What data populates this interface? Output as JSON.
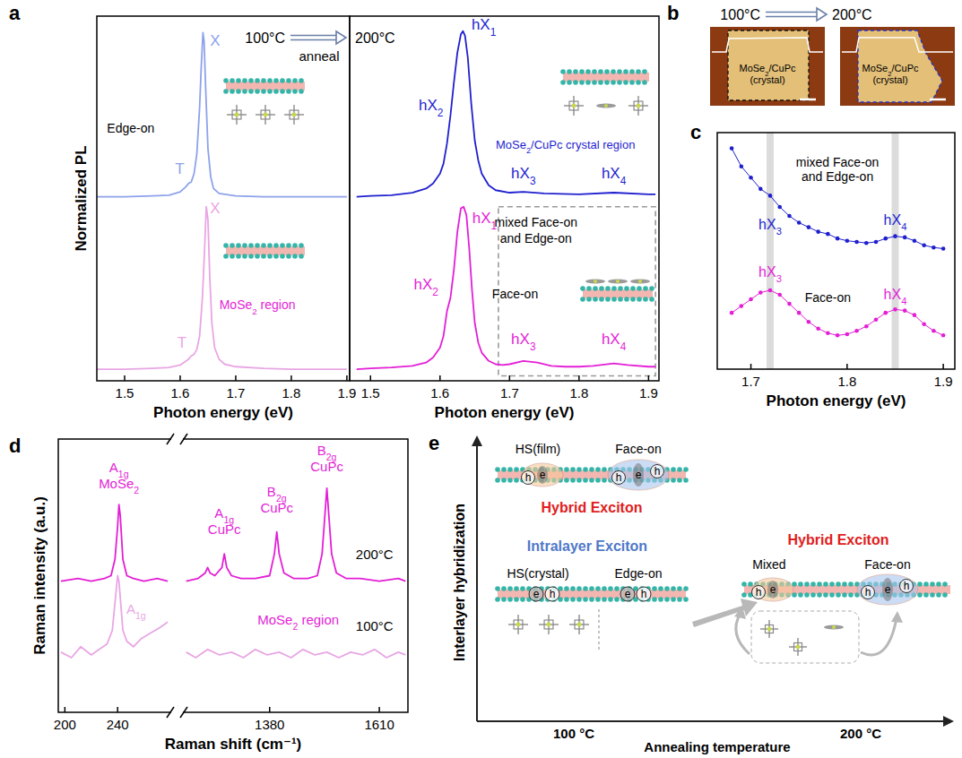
{
  "chart_data": [
    {
      "type": "line",
      "panel_label": "a",
      "xlabel": "Photon energy (eV)",
      "ylabel": "Normalized PL",
      "xlim": [
        1.45,
        1.905
      ],
      "ylim": [
        -0.05,
        2.15
      ],
      "xticks": [
        1.5,
        1.6,
        1.7,
        1.8,
        1.9
      ],
      "tick_labels": "x",
      "series": [
        {
          "color": "#8da2ea",
          "x": [
            1.45,
            1.5,
            1.55,
            1.58,
            1.6,
            1.61,
            1.615,
            1.62,
            1.625,
            1.63,
            1.635,
            1.638,
            1.641,
            1.643,
            1.646,
            1.65,
            1.655,
            1.66,
            1.67,
            1.7,
            1.75,
            1.8,
            1.85,
            1.9
          ],
          "values": [
            1.06,
            1.06,
            1.065,
            1.07,
            1.09,
            1.12,
            1.14,
            1.15,
            1.2,
            1.32,
            1.6,
            1.85,
            2.05,
            2.0,
            1.7,
            1.35,
            1.18,
            1.11,
            1.08,
            1.065,
            1.06,
            1.06,
            1.06,
            1.06
          ]
        },
        {
          "color": "#e8a6e4",
          "x": [
            1.45,
            1.5,
            1.55,
            1.58,
            1.6,
            1.615,
            1.62,
            1.625,
            1.63,
            1.635,
            1.64,
            1.644,
            1.647,
            1.65,
            1.653,
            1.657,
            1.662,
            1.67,
            1.68,
            1.7,
            1.75,
            1.8,
            1.85,
            1.9
          ],
          "values": [
            0.02,
            0.02,
            0.025,
            0.03,
            0.045,
            0.08,
            0.1,
            0.11,
            0.14,
            0.22,
            0.45,
            0.75,
            1.0,
            0.92,
            0.6,
            0.3,
            0.15,
            0.08,
            0.05,
            0.035,
            0.025,
            0.02,
            0.02,
            0.02
          ]
        }
      ],
      "annotations": [
        {
          "text": "X",
          "x": 1.663,
          "y": 1.97,
          "color": "#8da2ea"
        },
        {
          "text": "T",
          "x": 1.599,
          "y": 1.2,
          "color": "#8da2ea"
        },
        {
          "text": "Edge-on",
          "x": 1.511,
          "y": 1.45,
          "color": "#000000"
        },
        {
          "text": "X",
          "x": 1.663,
          "y": 0.96,
          "color": "#e8a6e4"
        },
        {
          "text": "T",
          "x": 1.603,
          "y": 0.15,
          "color": "#e8a6e4"
        },
        {
          "text": "MoSe2 region",
          "x": 1.739,
          "y": 0.38,
          "color": "#e31fd6"
        }
      ]
    },
    {
      "type": "line",
      "xlabel": "Photon energy (eV)",
      "xlim": [
        1.47,
        1.915
      ],
      "ylim": [
        -0.05,
        2.15
      ],
      "xticks": [
        1.5,
        1.6,
        1.7,
        1.8,
        1.9
      ],
      "tick_labels": "x",
      "highlight_box": {
        "x": [
          1.684,
          1.91
        ],
        "y": [
          -0.02,
          1.0
        ]
      },
      "series": [
        {
          "color": "#1f1fcf",
          "x": [
            1.48,
            1.5,
            1.53,
            1.56,
            1.58,
            1.59,
            1.6,
            1.605,
            1.61,
            1.615,
            1.62,
            1.625,
            1.63,
            1.633,
            1.636,
            1.64,
            1.645,
            1.65,
            1.655,
            1.66,
            1.67,
            1.68,
            1.7,
            1.72,
            1.75,
            1.8,
            1.85,
            1.9,
            1.91
          ],
          "values": [
            1.06,
            1.065,
            1.07,
            1.085,
            1.11,
            1.14,
            1.2,
            1.26,
            1.38,
            1.55,
            1.75,
            1.93,
            2.04,
            2.06,
            2.03,
            1.9,
            1.62,
            1.4,
            1.28,
            1.2,
            1.13,
            1.1,
            1.085,
            1.09,
            1.08,
            1.075,
            1.085,
            1.075,
            1.075
          ]
        },
        {
          "color": "#e31fd6",
          "x": [
            1.48,
            1.5,
            1.53,
            1.56,
            1.58,
            1.59,
            1.6,
            1.605,
            1.61,
            1.615,
            1.62,
            1.625,
            1.63,
            1.634,
            1.638,
            1.642,
            1.646,
            1.65,
            1.655,
            1.66,
            1.67,
            1.68,
            1.69,
            1.7,
            1.72,
            1.74,
            1.76,
            1.78,
            1.8,
            1.82,
            1.85,
            1.87,
            1.9,
            1.91
          ],
          "values": [
            0.02,
            0.025,
            0.03,
            0.04,
            0.06,
            0.09,
            0.15,
            0.22,
            0.37,
            0.45,
            0.62,
            0.85,
            0.99,
            1.0,
            0.95,
            0.75,
            0.5,
            0.3,
            0.18,
            0.12,
            0.07,
            0.05,
            0.045,
            0.05,
            0.07,
            0.06,
            0.04,
            0.035,
            0.035,
            0.04,
            0.055,
            0.045,
            0.035,
            0.035
          ]
        }
      ],
      "annotations": [
        {
          "text": "hX1",
          "x": 1.663,
          "y": 2.07,
          "color": "#1f1fcf"
        },
        {
          "text": "hX2",
          "x": 1.587,
          "y": 1.58,
          "color": "#1f1fcf"
        },
        {
          "text": "MoSe2/CuPc crystal region",
          "x": 1.7805,
          "y": 1.35,
          "color": "#1f1fcf"
        },
        {
          "text": "hX3",
          "x": 1.72,
          "y": 1.17,
          "color": "#1f1fcf"
        },
        {
          "text": "hX4",
          "x": 1.85,
          "y": 1.17,
          "color": "#1f1fcf"
        },
        {
          "text": "hX1",
          "x": 1.664,
          "y": 0.9,
          "color": "#e31fd6"
        },
        {
          "text": "hX2",
          "x": 1.58,
          "y": 0.5,
          "color": "#e31fd6"
        },
        {
          "text": "hX3",
          "x": 1.72,
          "y": 0.17,
          "color": "#e31fd6"
        },
        {
          "text": "hX4",
          "x": 1.85,
          "y": 0.17,
          "color": "#e31fd6"
        },
        {
          "lines": [
            "mixed Face-on",
            "and Edge-on"
          ],
          "x": 1.738,
          "y": 0.88,
          "color": "#000000"
        },
        {
          "text": "Face-on",
          "x": 1.708,
          "y": 0.45,
          "color": "#000000"
        }
      ]
    },
    {
      "type": "line",
      "panel_label": "c",
      "xlabel": "Photon energy (eV)",
      "xlim": [
        1.665,
        1.912
      ],
      "ylim": [
        0,
        1.05
      ],
      "xticks": [
        1.7,
        1.8,
        1.9
      ],
      "tick_labels": "x",
      "bands": [
        1.72,
        1.85
      ],
      "series": [
        {
          "color": "#1f1fcf",
          "marker": "circle",
          "line_style": "solid",
          "x": [
            1.68,
            1.69,
            1.7,
            1.71,
            1.72,
            1.73,
            1.74,
            1.75,
            1.76,
            1.77,
            1.78,
            1.79,
            1.8,
            1.81,
            1.82,
            1.83,
            1.84,
            1.85,
            1.86,
            1.87,
            1.88,
            1.89,
            1.9
          ],
          "values": [
            0.98,
            0.9,
            0.85,
            0.8,
            0.77,
            0.72,
            0.68,
            0.65,
            0.63,
            0.61,
            0.6,
            0.58,
            0.57,
            0.565,
            0.56,
            0.565,
            0.58,
            0.59,
            0.585,
            0.57,
            0.55,
            0.54,
            0.535
          ]
        },
        {
          "color": "#e31fd6",
          "marker": "circle",
          "line_style": "solid",
          "x": [
            1.68,
            1.69,
            1.7,
            1.71,
            1.72,
            1.73,
            1.74,
            1.75,
            1.76,
            1.77,
            1.78,
            1.79,
            1.8,
            1.81,
            1.82,
            1.83,
            1.84,
            1.85,
            1.86,
            1.87,
            1.88,
            1.89,
            1.9
          ],
          "values": [
            0.25,
            0.28,
            0.31,
            0.34,
            0.35,
            0.33,
            0.29,
            0.25,
            0.21,
            0.18,
            0.16,
            0.15,
            0.155,
            0.17,
            0.19,
            0.22,
            0.25,
            0.265,
            0.26,
            0.24,
            0.2,
            0.17,
            0.15
          ]
        }
      ],
      "annotations": [
        {
          "text": "hX3",
          "x": 1.72,
          "y": 0.62,
          "color": "#1f1fcf"
        },
        {
          "text": "hX4",
          "x": 1.85,
          "y": 0.64,
          "color": "#1f1fcf"
        },
        {
          "lines": [
            "mixed Face-on",
            "and Edge-on"
          ],
          "x": 1.79,
          "y": 0.9,
          "color": "#000000"
        },
        {
          "text": "hX3",
          "x": 1.72,
          "y": 0.41,
          "color": "#e31fd6"
        },
        {
          "text": "hX4",
          "x": 1.85,
          "y": 0.31,
          "color": "#e31fd6"
        },
        {
          "text": "Face-on",
          "x": 1.78,
          "y": 0.3,
          "color": "#000000"
        }
      ]
    },
    {
      "type": "line",
      "panel_label": "d",
      "xlabel": "Raman shift (cm⁻¹)",
      "ylabel": "Raman intensity (a.u.)",
      "xlim": [
        195,
        1670
      ],
      "x_break": [
        280,
        1200
      ],
      "ylim": [
        0,
        1
      ],
      "xticks": [
        200,
        240,
        1380,
        1610
      ],
      "tick_labels": "x",
      "series": [
        {
          "color": "#e31fd6",
          "x": [
            197,
            210,
            220,
            230,
            235,
            238,
            240,
            241,
            242,
            244,
            247,
            252,
            260,
            270,
            278,
            740,
            1205,
            1230,
            1245,
            1250,
            1255,
            1265,
            1280,
            1285,
            1290,
            1300,
            1320,
            1350,
            1380,
            1390,
            1395,
            1400,
            1410,
            1430,
            1460,
            1480,
            1490,
            1495,
            1500,
            1505,
            1510,
            1520,
            1540,
            1570,
            1610,
            1650,
            1665
          ],
          "values": [
            0.48,
            0.49,
            0.48,
            0.49,
            0.5,
            0.56,
            0.68,
            0.76,
            0.72,
            0.56,
            0.5,
            0.49,
            0.48,
            0.49,
            0.48,
            null,
            0.48,
            0.49,
            0.51,
            0.53,
            0.51,
            0.5,
            0.53,
            0.58,
            0.53,
            0.5,
            0.49,
            0.49,
            0.5,
            0.58,
            0.66,
            0.58,
            0.51,
            0.49,
            0.49,
            0.5,
            0.58,
            0.7,
            0.82,
            0.7,
            0.58,
            0.51,
            0.49,
            0.49,
            0.48,
            0.49,
            0.48
          ]
        },
        {
          "color": "#e8a6e4",
          "x": [
            197,
            205,
            212,
            220,
            226,
            232,
            236,
            238,
            240,
            241,
            242,
            244,
            247,
            252,
            258,
            265,
            272,
            278,
            740,
            1205,
            1225,
            1250,
            1275,
            1300,
            1325,
            1350,
            1375,
            1400,
            1425,
            1450,
            1475,
            1500,
            1525,
            1550,
            1575,
            1600,
            1625,
            1650,
            1665
          ],
          "values": [
            0.22,
            0.2,
            0.24,
            0.21,
            0.23,
            0.25,
            0.3,
            0.4,
            0.5,
            0.48,
            0.42,
            0.3,
            0.26,
            0.24,
            0.27,
            0.29,
            0.31,
            0.33,
            null,
            0.22,
            0.2,
            0.23,
            0.21,
            0.22,
            0.2,
            0.23,
            0.21,
            0.22,
            0.2,
            0.23,
            0.21,
            0.22,
            0.2,
            0.22,
            0.21,
            0.23,
            0.2,
            0.22,
            0.21
          ]
        }
      ],
      "annotations": [
        {
          "lines": [
            "A1g",
            "MoSe2"
          ],
          "x": 241,
          "y": 0.88,
          "color": "#e31fd6"
        },
        {
          "lines": [
            "A1g",
            "CuPc"
          ],
          "x": 1285,
          "y": 0.71,
          "color": "#e31fd6"
        },
        {
          "lines": [
            "B2g",
            "CuPc"
          ],
          "x": 1395,
          "y": 0.79,
          "color": "#e31fd6"
        },
        {
          "lines": [
            "B2g",
            "CuPc"
          ],
          "x": 1500,
          "y": 0.94,
          "color": "#e31fd6"
        },
        {
          "text": "A1g",
          "x": 254,
          "y": 0.36,
          "color": "#e8a6e4"
        },
        {
          "text": "200°C",
          "x": 1600,
          "y": 0.56,
          "color": "#000000"
        },
        {
          "text": "100°C",
          "x": 1600,
          "y": 0.3,
          "color": "#000000"
        },
        {
          "text": "MoSe2 region",
          "x": 1440,
          "y": 0.32,
          "color": "#e31fd6"
        }
      ]
    }
  ],
  "panel_a_header": {
    "from": "100°C",
    "to": "200°C",
    "arrow_label": "anneal"
  },
  "panel_b": {
    "panel_label": "b",
    "from": "100°C",
    "to": "200°C",
    "images": [
      {
        "lines": [
          "MoSe2/CuPc",
          "(crystal)"
        ]
      },
      {
        "lines": [
          "MoSe2/CuPc",
          "(crystal)"
        ]
      }
    ]
  },
  "panel_e": {
    "panel_label": "e",
    "ylabel": "Interlayer hybridization",
    "xlabel": "Annealing temperature",
    "xticks": [
      "100 °C",
      "200 °C"
    ],
    "electron": "e",
    "hole": "h",
    "top_left": {
      "labels": [
        "HS(film)",
        "Face-on"
      ],
      "caption": "Hybrid Exciton"
    },
    "middle_caption": "Intralayer Exciton",
    "bottom_left": {
      "labels": [
        "HS(crystal)",
        "Edge-on"
      ]
    },
    "bottom_right": {
      "labels": [
        "Mixed",
        "Face-on"
      ],
      "caption": "Hybrid Exciton"
    }
  }
}
